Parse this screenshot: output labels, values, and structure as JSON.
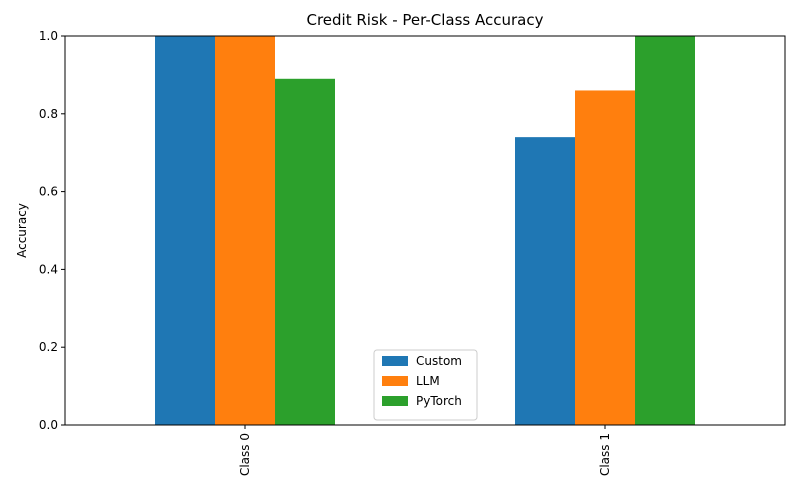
{
  "chart_data": {
    "type": "bar",
    "title": "Credit Risk - Per-Class Accuracy",
    "xlabel": "",
    "ylabel": "Accuracy",
    "categories": [
      "Class 0",
      "Class 1"
    ],
    "ylim": [
      0,
      1.0
    ],
    "yticks": [
      "0.0",
      "0.2",
      "0.4",
      "0.6",
      "0.8",
      "1.0"
    ],
    "series": [
      {
        "name": "Custom",
        "values": [
          1.0,
          0.74
        ],
        "color": "#1f77b4"
      },
      {
        "name": "LLM",
        "values": [
          1.0,
          0.86
        ],
        "color": "#ff7f0e"
      },
      {
        "name": "PyTorch",
        "values": [
          0.89,
          1.0
        ],
        "color": "#2ca02c"
      }
    ],
    "grid": false,
    "legend_position": "bottom-center"
  }
}
